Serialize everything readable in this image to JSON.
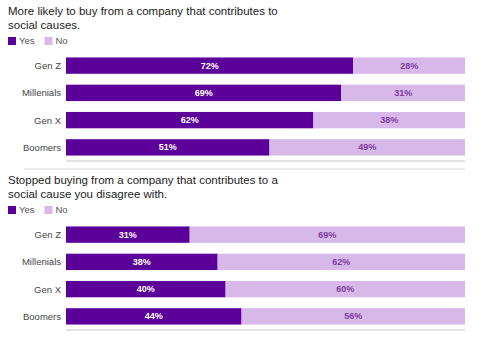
{
  "chart_data": [
    {
      "type": "bar",
      "orientation": "horizontal",
      "stacked": true,
      "data_labels": true,
      "tick_labels": "y",
      "grid": false,
      "legend": "upper left",
      "title": "More likely to buy from a company that contributes to\nsocial causes.",
      "categories": [
        "Gen Z",
        "Millenials",
        "Gen X",
        "Boomers"
      ],
      "xlim": [
        0,
        100
      ],
      "series": [
        {
          "name": "Yes",
          "color": "#5B0099",
          "values": [
            72,
            69,
            62,
            51
          ],
          "value_labels": [
            "72%",
            "69%",
            "62%",
            "51%"
          ]
        },
        {
          "name": "No",
          "color": "#D8B8E8",
          "values": [
            28,
            31,
            38,
            49
          ],
          "value_labels": [
            "28%",
            "31%",
            "38%",
            "49%"
          ]
        }
      ]
    },
    {
      "type": "bar",
      "orientation": "horizontal",
      "stacked": true,
      "data_labels": true,
      "tick_labels": "y",
      "grid": false,
      "legend": "upper left",
      "title": "Stopped buying from a company that contributes to a\nsocial cause you disagree with.",
      "categories": [
        "Gen Z",
        "Millenials",
        "Gen X",
        "Boomers"
      ],
      "xlim": [
        0,
        100
      ],
      "series": [
        {
          "name": "Yes",
          "color": "#5B0099",
          "values": [
            31,
            38,
            40,
            44
          ],
          "value_labels": [
            "31%",
            "38%",
            "40%",
            "44%"
          ]
        },
        {
          "name": "No",
          "color": "#D8B8E8",
          "values": [
            69,
            62,
            60,
            56
          ],
          "value_labels": [
            "69%",
            "62%",
            "60%",
            "56%"
          ]
        }
      ]
    }
  ]
}
